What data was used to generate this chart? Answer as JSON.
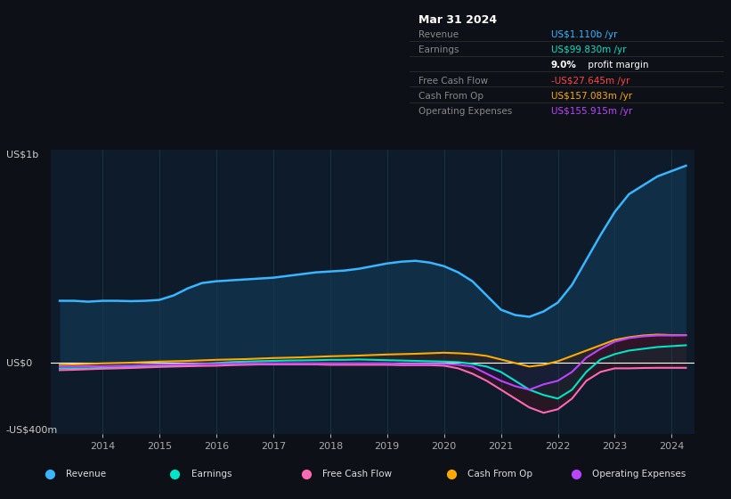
{
  "bg_color": "#0d1117",
  "plot_bg_color": "#0d1b2a",
  "grid_color": "#1e3a4a",
  "title_box": {
    "date": "Mar 31 2024",
    "rows": [
      {
        "label": "Revenue",
        "value": "US$1.110b /yr",
        "value_color": "#38b6ff"
      },
      {
        "label": "Earnings",
        "value": "US$99.830m /yr",
        "value_color": "#00e5c8"
      },
      {
        "label": "",
        "value": "9.0% profit margin",
        "value_color": "#ffffff",
        "bold": "9.0%"
      },
      {
        "label": "Free Cash Flow",
        "value": "-US$27.645m /yr",
        "value_color": "#ff4444"
      },
      {
        "label": "Cash From Op",
        "value": "US$157.083m /yr",
        "value_color": "#ffaa00"
      },
      {
        "label": "Operating Expenses",
        "value": "US$155.915m /yr",
        "value_color": "#bb44ff"
      }
    ]
  },
  "ylabel_top": "US$1b",
  "ylabel_zero": "US$0",
  "ylabel_bottom": "-US$400m",
  "x_labels": [
    "2014",
    "2015",
    "2016",
    "2017",
    "2018",
    "2019",
    "2020",
    "2021",
    "2022",
    "2023",
    "2024"
  ],
  "legend": [
    {
      "label": "Revenue",
      "color": "#38b6ff"
    },
    {
      "label": "Earnings",
      "color": "#00e5c8"
    },
    {
      "label": "Free Cash Flow",
      "color": "#ff69b4"
    },
    {
      "label": "Cash From Op",
      "color": "#ffaa00"
    },
    {
      "label": "Operating Expenses",
      "color": "#bb44ff"
    }
  ],
  "years": [
    2013.25,
    2013.5,
    2013.75,
    2014.0,
    2014.25,
    2014.5,
    2014.75,
    2015.0,
    2015.25,
    2015.5,
    2015.75,
    2016.0,
    2016.25,
    2016.5,
    2016.75,
    2017.0,
    2017.25,
    2017.5,
    2017.75,
    2018.0,
    2018.25,
    2018.5,
    2018.75,
    2019.0,
    2019.25,
    2019.5,
    2019.75,
    2020.0,
    2020.25,
    2020.5,
    2020.75,
    2021.0,
    2021.25,
    2021.5,
    2021.75,
    2022.0,
    2022.25,
    2022.5,
    2022.75,
    2023.0,
    2023.25,
    2023.5,
    2023.75,
    2024.0,
    2024.25
  ],
  "revenue": [
    350,
    350,
    345,
    350,
    350,
    348,
    350,
    355,
    380,
    420,
    450,
    460,
    465,
    470,
    475,
    480,
    490,
    500,
    510,
    515,
    520,
    530,
    545,
    560,
    570,
    575,
    565,
    545,
    510,
    460,
    380,
    300,
    270,
    260,
    290,
    340,
    440,
    580,
    720,
    850,
    950,
    1000,
    1050,
    1080,
    1110
  ],
  "earnings": [
    -30,
    -30,
    -30,
    -28,
    -25,
    -22,
    -20,
    -18,
    -15,
    -10,
    -5,
    0,
    5,
    8,
    10,
    12,
    14,
    15,
    16,
    18,
    18,
    20,
    18,
    16,
    14,
    12,
    10,
    8,
    5,
    -5,
    -20,
    -50,
    -100,
    -150,
    -180,
    -200,
    -150,
    -50,
    20,
    50,
    70,
    80,
    90,
    95,
    100
  ],
  "free_cash_flow": [
    -40,
    -38,
    -35,
    -32,
    -30,
    -28,
    -25,
    -22,
    -20,
    -18,
    -16,
    -15,
    -12,
    -10,
    -8,
    -8,
    -8,
    -8,
    -8,
    -10,
    -10,
    -10,
    -10,
    -10,
    -12,
    -12,
    -12,
    -15,
    -30,
    -60,
    -100,
    -150,
    -200,
    -250,
    -280,
    -260,
    -200,
    -100,
    -50,
    -30,
    -30,
    -28,
    -27,
    -27,
    -27
  ],
  "cash_from_op": [
    -10,
    -8,
    -5,
    -2,
    0,
    2,
    5,
    8,
    10,
    12,
    15,
    18,
    20,
    22,
    25,
    28,
    30,
    32,
    35,
    38,
    40,
    42,
    45,
    48,
    50,
    52,
    55,
    58,
    55,
    50,
    40,
    20,
    0,
    -20,
    -10,
    10,
    40,
    70,
    100,
    130,
    145,
    155,
    160,
    157,
    157
  ],
  "operating_expenses": [
    -20,
    -20,
    -18,
    -18,
    -16,
    -15,
    -12,
    -10,
    -8,
    -6,
    -5,
    -5,
    -3,
    -2,
    -2,
    -2,
    -2,
    -2,
    -2,
    -2,
    -2,
    -2,
    -2,
    -2,
    -5,
    -5,
    -5,
    -5,
    -10,
    -20,
    -60,
    -100,
    -130,
    -150,
    -120,
    -100,
    -50,
    30,
    80,
    120,
    140,
    150,
    155,
    155,
    156
  ]
}
